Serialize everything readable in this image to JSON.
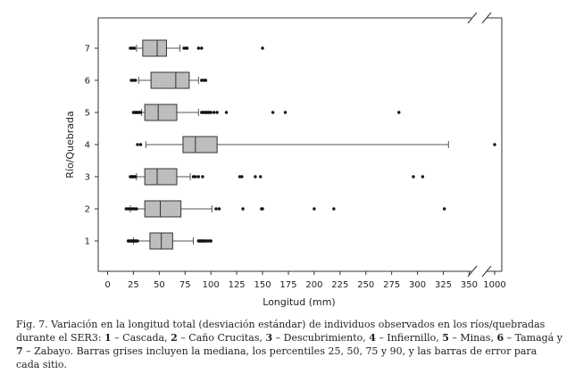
{
  "chart_data": {
    "type": "boxplot",
    "orientation": "horizontal",
    "xlabel": "Longitud (mm)",
    "ylabel": "Río/Quebrada",
    "x_ticks": [
      "0",
      "25",
      "50",
      "75",
      "100",
      "125",
      "150",
      "175",
      "200",
      "225",
      "250",
      "275",
      "300",
      "325",
      "350",
      "1000"
    ],
    "x_range": [
      0,
      350
    ],
    "x_break": {
      "after": 350,
      "resume_at": 1000
    },
    "box_color": "#bdbdbd",
    "categories": [
      "1",
      "2",
      "3",
      "4",
      "5",
      "6",
      "7"
    ],
    "boxes": [
      {
        "category": "1",
        "whisker_low": 25,
        "q1": 41,
        "median": 52,
        "q3": 63,
        "whisker_high": 83,
        "outliers": [
          20,
          21,
          22,
          23,
          24,
          25,
          26,
          27,
          28,
          29,
          88,
          89,
          90,
          91,
          92,
          93,
          94,
          95,
          97,
          99,
          100
        ]
      },
      {
        "category": "2",
        "whisker_low": 22,
        "q1": 36,
        "median": 51,
        "q3": 71,
        "whisker_high": 101,
        "outliers": [
          18,
          20,
          22,
          24,
          26,
          28,
          105,
          108,
          131,
          149,
          150,
          200,
          219,
          326
        ]
      },
      {
        "category": "3",
        "whisker_low": 28,
        "q1": 36,
        "median": 48,
        "q3": 67,
        "whisker_high": 80,
        "outliers": [
          22,
          23,
          24,
          25,
          26,
          27,
          83,
          85,
          88,
          92,
          128,
          130,
          143,
          148,
          296,
          305
        ]
      },
      {
        "category": "4",
        "whisker_low": 37,
        "q1": 73,
        "median": 85,
        "q3": 106,
        "whisker_high": 330,
        "outliers": [
          29,
          32,
          1000
        ]
      },
      {
        "category": "5",
        "whisker_low": 33,
        "q1": 36,
        "median": 49,
        "q3": 67,
        "whisker_high": 88,
        "outliers": [
          25,
          26,
          27,
          28,
          29,
          30,
          31,
          32,
          91,
          92,
          93,
          94,
          95,
          96,
          97,
          98,
          99,
          100,
          103,
          106,
          115,
          160,
          172,
          282
        ]
      },
      {
        "category": "6",
        "whisker_low": 30,
        "q1": 42,
        "median": 66,
        "q3": 79,
        "whisker_high": 88,
        "outliers": [
          23,
          25,
          27,
          91,
          93,
          95
        ]
      },
      {
        "category": "7",
        "whisker_low": 28,
        "q1": 34,
        "median": 48,
        "q3": 57,
        "whisker_high": 70,
        "outliers": [
          22,
          24,
          26,
          74,
          76,
          77,
          88,
          91,
          150
        ]
      }
    ]
  },
  "caption": {
    "line1": "Fig. 7. Variación en la longitud total (desviación estándar) de individuos observados en los ríos/quebradas durante el SER3:",
    "items": [
      {
        "num": "1",
        "name": "Cascada"
      },
      {
        "num": "2",
        "name": "Caño Crucitas"
      },
      {
        "num": "3",
        "name": "Descubrimiento"
      },
      {
        "num": "4",
        "name": "Infiernillo"
      },
      {
        "num": "5",
        "name": "Minas"
      },
      {
        "num": "6",
        "name": "Tamagá"
      },
      {
        "num": "7",
        "name": "Zabayo"
      }
    ],
    "tail": "Barras grises incluyen la mediana, los percentiles 25, 50, 75 y 90, y las barras de error para cada sitio."
  }
}
